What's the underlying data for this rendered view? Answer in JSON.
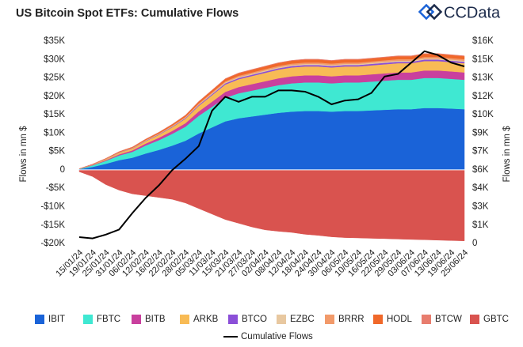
{
  "logo": "CCData",
  "chart_data": {
    "type": "stacked_area_line",
    "title": "US Bitcoin Spot ETFs: Cumulative Flows",
    "ylabel": "Flows in mn $",
    "y2label": "Flows in mn $",
    "categories": [
      "15/01/24",
      "19/01/24",
      "25/01/24",
      "31/01/24",
      "06/02/24",
      "12/02/24",
      "16/02/24",
      "22/02/24",
      "28/02/24",
      "05/03/24",
      "11/03/24",
      "15/03/24",
      "21/03/24",
      "27/03/24",
      "02/04/24",
      "08/04/24",
      "12/04/24",
      "18/04/24",
      "24/04/24",
      "30/04/24",
      "06/05/24",
      "10/05/24",
      "16/05/24",
      "22/05/24",
      "29/05/24",
      "03/06/24",
      "07/06/24",
      "13/06/24",
      "19/06/24",
      "25/06/24"
    ],
    "series": [
      {
        "name": "IBIT",
        "color": "#1a63d8",
        "values": [
          165,
          825,
          1650,
          2640,
          3300,
          4455,
          5445,
          6600,
          7920,
          9900,
          11550,
          13200,
          14025,
          14520,
          15015,
          15510,
          15840,
          16005,
          16005,
          15840,
          16005,
          16005,
          16170,
          16335,
          16500,
          16500,
          16830,
          16830,
          16665,
          16500
        ]
      },
      {
        "name": "FBTC",
        "color": "#3fe8d2",
        "values": [
          80,
          400,
          800,
          1280,
          1600,
          2160,
          2640,
          3200,
          3840,
          4800,
          5600,
          6400,
          6800,
          7040,
          7280,
          7520,
          7680,
          7760,
          7760,
          7680,
          7760,
          7760,
          7840,
          7920,
          8000,
          8000,
          8160,
          8160,
          8080,
          8000
        ]
      },
      {
        "name": "BITB",
        "color": "#c9409e",
        "values": [
          20,
          100,
          200,
          320,
          400,
          540,
          660,
          800,
          960,
          1200,
          1400,
          1600,
          1700,
          1760,
          1820,
          1880,
          1920,
          1940,
          1940,
          1920,
          1940,
          1940,
          1960,
          1980,
          2000,
          2000,
          2040,
          2040,
          2020,
          2000
        ]
      },
      {
        "name": "ARKB",
        "color": "#f8bb55",
        "values": [
          25,
          125,
          250,
          400,
          500,
          675,
          825,
          1000,
          1200,
          1500,
          1750,
          2000,
          2125,
          2200,
          2275,
          2350,
          2400,
          2425,
          2425,
          2400,
          2425,
          2425,
          2450,
          2475,
          2500,
          2500,
          2550,
          2550,
          2525,
          2500
        ]
      },
      {
        "name": "BTCO",
        "color": "#8b4fd8",
        "values": [
          4,
          20,
          40,
          64,
          80,
          108,
          132,
          160,
          192,
          240,
          280,
          320,
          340,
          352,
          364,
          376,
          384,
          388,
          388,
          384,
          388,
          388,
          392,
          396,
          400,
          400,
          408,
          408,
          404,
          400
        ]
      },
      {
        "name": "EZBC",
        "color": "#e8c8a0",
        "values": [
          3,
          15,
          30,
          48,
          60,
          81,
          99,
          120,
          144,
          180,
          210,
          240,
          255,
          264,
          273,
          282,
          288,
          291,
          291,
          288,
          291,
          291,
          294,
          297,
          300,
          300,
          306,
          306,
          303,
          300
        ]
      },
      {
        "name": "BRRR",
        "color": "#f29a6a",
        "values": [
          4,
          20,
          40,
          64,
          80,
          108,
          132,
          160,
          192,
          240,
          280,
          320,
          340,
          352,
          364,
          376,
          384,
          388,
          388,
          384,
          388,
          388,
          392,
          396,
          400,
          400,
          408,
          408,
          404,
          400
        ]
      },
      {
        "name": "HODL",
        "color": "#f0682a",
        "values": [
          8,
          40,
          80,
          128,
          160,
          216,
          264,
          320,
          384,
          480,
          560,
          640,
          680,
          704,
          728,
          752,
          768,
          776,
          776,
          768,
          776,
          776,
          784,
          792,
          800,
          800,
          816,
          816,
          808,
          800
        ]
      },
      {
        "name": "BTCW",
        "color": "#e87d6e",
        "values": [
          1,
          5,
          10,
          16,
          20,
          27,
          33,
          40,
          48,
          60,
          70,
          80,
          85,
          88,
          91,
          94,
          96,
          97,
          97,
          96,
          97,
          97,
          98,
          99,
          100,
          100,
          102,
          102,
          101,
          100
        ]
      },
      {
        "name": "GBTC",
        "color": "#d9534f",
        "values": [
          -500,
          -1800,
          -4000,
          -5500,
          -6500,
          -7000,
          -7500,
          -8000,
          -9000,
          -10500,
          -12000,
          -13500,
          -14500,
          -15500,
          -16300,
          -16700,
          -17000,
          -17500,
          -17800,
          -18200,
          -18400,
          -18500,
          -18600,
          -18700,
          -18800,
          -18900,
          -19000,
          -19100,
          -19200,
          -19300
        ]
      },
      {
        "name": "Cumulative Flows",
        "color": "#000000",
        "axis": "y2",
        "values": [
          500,
          400,
          700,
          1100,
          2400,
          3600,
          4600,
          5800,
          6700,
          7700,
          10500,
          11600,
          11200,
          11600,
          11600,
          12100,
          12100,
          12000,
          11600,
          11000,
          11300,
          11400,
          11900,
          13200,
          13400,
          14300,
          15200,
          14900,
          14300,
          14000
        ]
      }
    ],
    "ylim": [
      -20000,
      35000
    ],
    "yticks": [
      {
        "value": 35000,
        "label": "$35K"
      },
      {
        "value": 30000,
        "label": "$30K"
      },
      {
        "value": 25000,
        "label": "$25K"
      },
      {
        "value": 20000,
        "label": "$20K"
      },
      {
        "value": 15000,
        "label": "$15K"
      },
      {
        "value": 10000,
        "label": "$10K"
      },
      {
        "value": 5000,
        "label": "$5K"
      },
      0,
      {
        "value": -5000,
        "label": "-$5K"
      },
      {
        "value": -10000,
        "label": "-$10K"
      },
      {
        "value": -15000,
        "label": "-$15K"
      },
      {
        "value": -20000,
        "label": "-$20K"
      }
    ],
    "y2lim": [
      0,
      16000
    ],
    "y2ticks": [
      {
        "value": 16000,
        "label": "$16K"
      },
      {
        "value": 14545,
        "label": "$15K"
      },
      {
        "value": 13091,
        "label": "$13K"
      },
      {
        "value": 11636,
        "label": "$12K"
      },
      {
        "value": 10182,
        "label": "$10K"
      },
      {
        "value": 8727,
        "label": "$9K"
      },
      {
        "value": 7273,
        "label": "$7K"
      },
      {
        "value": 5818,
        "label": "$6K"
      },
      {
        "value": 4364,
        "label": "$4K"
      },
      {
        "value": 2909,
        "label": "$3K"
      },
      {
        "value": 1455,
        "label": "$1K"
      },
      0
    ],
    "grid": false,
    "legend": "bottom"
  }
}
